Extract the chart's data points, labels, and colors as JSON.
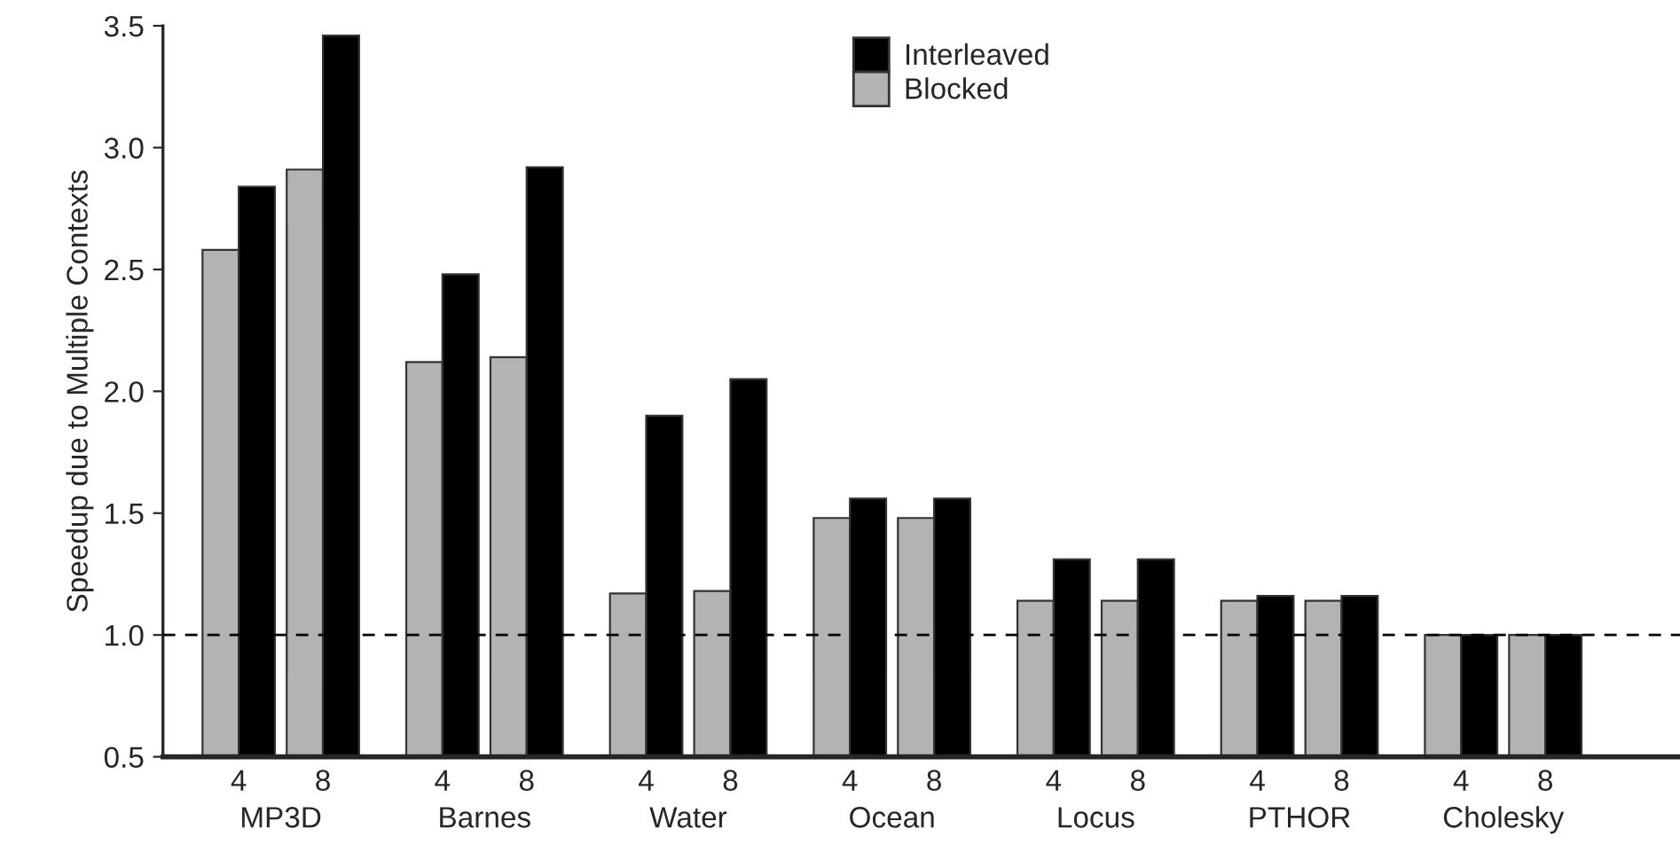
{
  "chart_data": {
    "type": "bar",
    "ylabel": "Speedup due to Multiple Contexts",
    "categories": [
      "4",
      "8",
      "4",
      "8",
      "4",
      "8",
      "4",
      "8",
      "4",
      "8",
      "4",
      "8",
      "4",
      "8"
    ],
    "series": [
      {
        "name": "Blocked",
        "color": "#b3b3b3",
        "values": [
          2.58,
          2.91,
          2.12,
          2.14,
          1.17,
          1.18,
          1.48,
          1.48,
          1.14,
          1.14,
          1.14,
          1.14,
          1.0,
          1.0
        ]
      },
      {
        "name": "Interleaved",
        "color": "#000000",
        "values": [
          2.84,
          3.46,
          2.48,
          2.92,
          1.9,
          2.05,
          1.56,
          1.56,
          1.31,
          1.31,
          1.16,
          1.16,
          1.0,
          1.0
        ]
      }
    ],
    "annotations": [
      "MP3D",
      "Barnes",
      "Water",
      "Ocean",
      "Locus",
      "PTHOR",
      "Cholesky"
    ],
    "ylim": [
      0.5,
      3.5
    ],
    "yticks": [
      {
        "value": 0.5,
        "label": "0.5"
      },
      {
        "value": 1.0,
        "label": "1.0"
      },
      {
        "value": 1.5,
        "label": "1.5"
      },
      {
        "value": 2.0,
        "label": "2.0"
      },
      {
        "value": 2.5,
        "label": "2.5"
      },
      {
        "value": 3.0,
        "label": "3.0"
      },
      {
        "value": 3.5,
        "label": "3.5"
      }
    ],
    "ref_lines": [
      {
        "axis": "y",
        "value": 1.0,
        "color": "#000000",
        "line_style": "dashed"
      }
    ],
    "legend": "top",
    "grid": false
  }
}
